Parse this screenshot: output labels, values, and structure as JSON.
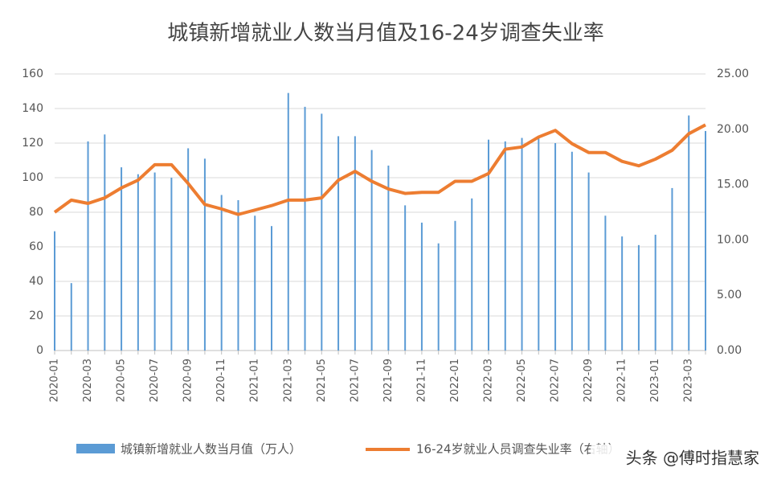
{
  "chart_data": {
    "type": "bar-line",
    "title": "城镇新增就业人数当月值及16-24岁调查失业率",
    "categories": [
      "2020-01",
      null,
      "2020-03",
      null,
      "2020-05",
      null,
      "2020-07",
      null,
      "2020-09",
      null,
      "2020-11",
      null,
      "2021-01",
      null,
      "2021-03",
      null,
      "2021-05",
      null,
      "2021-07",
      null,
      "2021-09",
      null,
      "2021-11",
      null,
      "2022-01",
      null,
      "2022-03",
      null,
      "2022-05",
      null,
      "2022-07",
      null,
      "2022-09",
      null,
      "2022-11",
      null,
      "2023-01",
      null,
      "2023-03",
      null
    ],
    "series": [
      {
        "name": "城镇新增就业人数当月值（万人）",
        "color": "#5b9bd5",
        "type": "bar",
        "values": [
          69,
          39,
          121,
          125,
          106,
          102,
          103,
          100,
          117,
          111,
          90,
          87,
          78,
          72,
          149,
          141,
          137,
          124,
          124,
          116,
          107,
          84,
          74,
          62,
          75,
          88,
          122,
          121,
          123,
          124,
          120,
          115,
          103,
          78,
          66,
          61,
          67,
          94,
          136,
          127
        ]
      },
      {
        "name": "16-24岁就业人员调查失业率（右轴）",
        "color": "#ed7d31",
        "type": "line",
        "axis": "y2",
        "values": [
          12.5,
          13.6,
          13.3,
          13.8,
          14.7,
          15.4,
          16.8,
          16.8,
          15.1,
          13.2,
          12.8,
          12.3,
          12.7,
          13.1,
          13.6,
          13.6,
          13.8,
          15.4,
          16.2,
          15.3,
          14.6,
          14.2,
          14.3,
          14.3,
          15.3,
          15.3,
          16.0,
          18.2,
          18.4,
          19.3,
          19.9,
          18.7,
          17.9,
          17.9,
          17.1,
          16.7,
          17.3,
          18.1,
          19.6,
          20.4
        ]
      }
    ],
    "ylim": [
      0,
      160
    ],
    "yticks": [
      0,
      20,
      40,
      60,
      80,
      100,
      120,
      140,
      160
    ],
    "y2lim": [
      0,
      25
    ],
    "y2ticks": [
      {
        "value": 0,
        "label": "0.00"
      },
      {
        "value": 5,
        "label": "5.00"
      },
      {
        "value": 10,
        "label": "10.00"
      },
      {
        "value": 15,
        "label": "15.00"
      },
      {
        "value": 20,
        "label": "20.00"
      },
      {
        "value": 25,
        "label": "25.00"
      }
    ],
    "grid": true,
    "watermark": "头条 @傅时指慧家"
  }
}
